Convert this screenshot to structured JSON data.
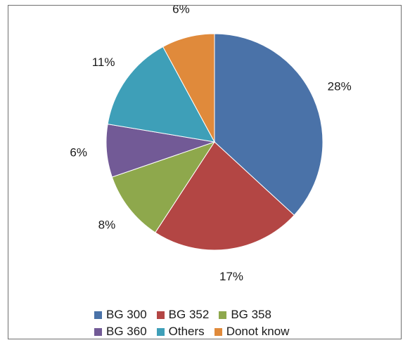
{
  "chart_data": {
    "type": "pie",
    "slices": [
      {
        "name": "BG 300",
        "value": 28,
        "label": "28%",
        "color": "#4a72a8"
      },
      {
        "name": "BG 352",
        "value": 17,
        "label": "17%",
        "color": "#b34644"
      },
      {
        "name": "BG 358",
        "value": 8,
        "label": "8%",
        "color": "#8ea84c"
      },
      {
        "name": "BG 360",
        "value": 6,
        "label": "6%",
        "color": "#725a96"
      },
      {
        "name": "Others",
        "value": 11,
        "label": "11%",
        "color": "#3e9fb8"
      },
      {
        "name": "Donot know",
        "value": 6,
        "label": "6%",
        "color": "#e08a3b"
      }
    ],
    "start_angle": "12 o'clock, clockwise",
    "legend_placement": "bottom"
  }
}
